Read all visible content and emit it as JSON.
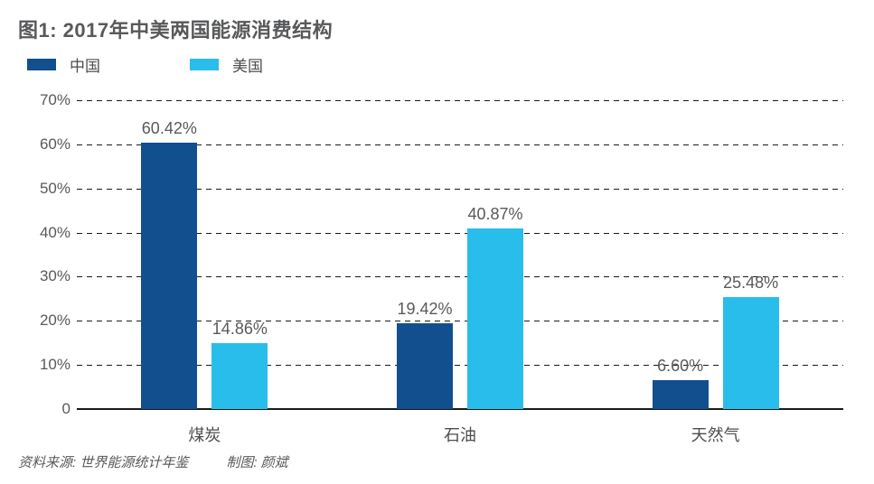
{
  "title": "图1: 2017年中美两国能源消费结构",
  "legend": [
    {
      "label": "中国",
      "color": "#114F8F"
    },
    {
      "label": "美国",
      "color": "#29BDEB"
    }
  ],
  "footer": {
    "source": "资料来源: 世界能源统计年鉴",
    "credit": "制图: 颜斌"
  },
  "chart_data": {
    "type": "bar",
    "title": "图1: 2017年中美两国能源消费结构",
    "categories": [
      "煤炭",
      "石油",
      "天然气"
    ],
    "series": [
      {
        "name": "中国",
        "color": "#114F8F",
        "values": [
          60.42,
          19.42,
          6.6
        ],
        "labels": [
          "60.42%",
          "19.42%",
          "6.60%"
        ]
      },
      {
        "name": "美国",
        "color": "#29BDEB",
        "values": [
          14.86,
          40.87,
          25.48
        ],
        "labels": [
          "14.86%",
          "40.87%",
          "25.48%"
        ]
      }
    ],
    "xlabel": "",
    "ylabel": "",
    "ylim": [
      0,
      70
    ],
    "ytick_values": [
      70,
      60,
      50,
      40,
      30,
      20,
      10,
      0
    ],
    "ytick_labels": [
      "70%",
      "60%",
      "50%",
      "40%",
      "30%",
      "20%",
      "10%",
      "0"
    ],
    "grid": "horizontal-dashed",
    "legend_position": "top-left"
  }
}
